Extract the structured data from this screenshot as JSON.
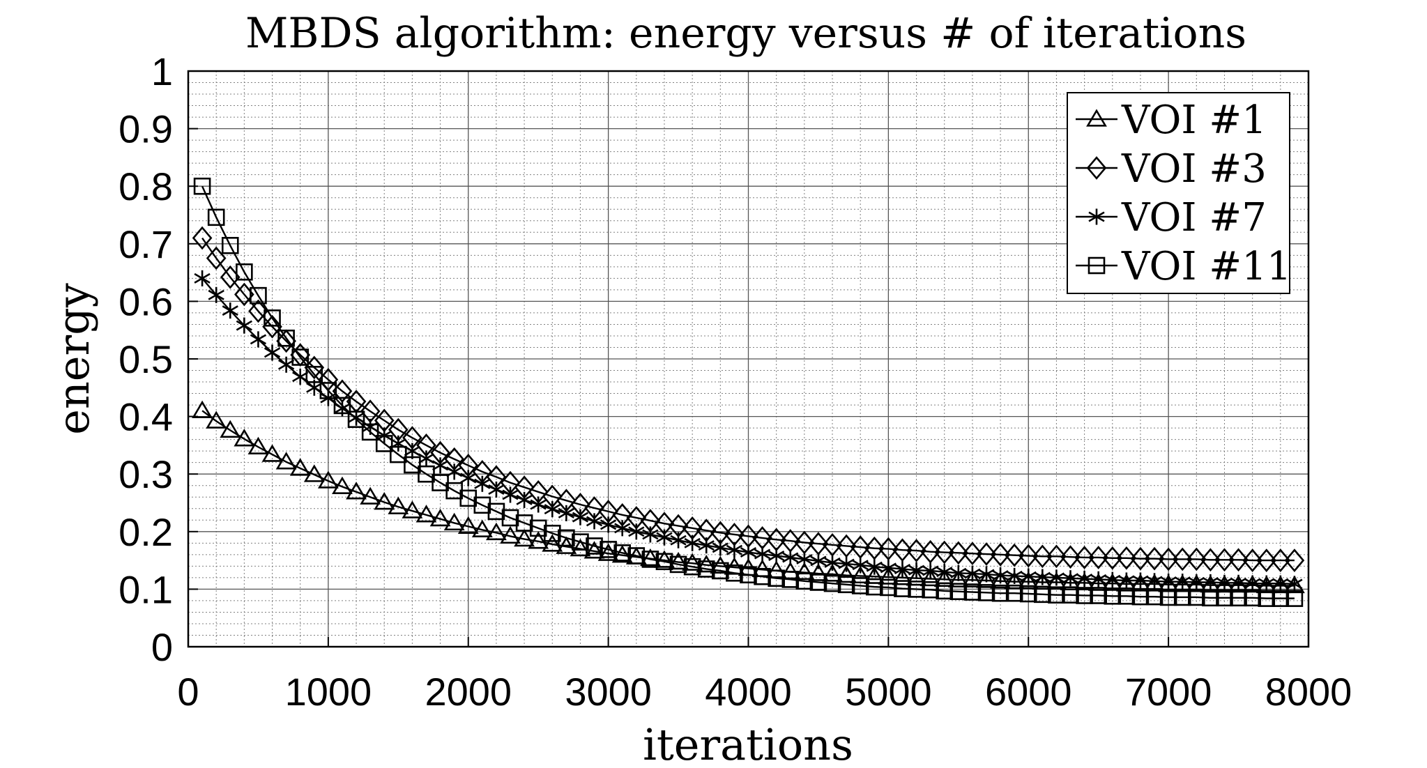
{
  "chart_data": {
    "type": "line",
    "title": "MBDS algorithm: energy versus # of iterations",
    "xlabel": "iterations",
    "ylabel": "energy",
    "xlim": [
      0,
      8000
    ],
    "ylim": [
      0,
      1
    ],
    "xticks": [
      "0",
      "1000",
      "2000",
      "3000",
      "4000",
      "5000",
      "6000",
      "7000",
      "8000"
    ],
    "yticks": [
      "0",
      "0.1",
      "0.2",
      "0.3",
      "0.4",
      "0.5",
      "0.6",
      "0.7",
      "0.8",
      "0.9",
      "1"
    ],
    "grid": true,
    "minor_grid": true,
    "legend_position": "top-right",
    "color": "#000000",
    "x": [
      100,
      200,
      300,
      400,
      500,
      600,
      700,
      800,
      900,
      1000,
      1100,
      1200,
      1300,
      1400,
      1500,
      1600,
      1700,
      1800,
      1900,
      2000,
      2100,
      2200,
      2300,
      2400,
      2500,
      2600,
      2700,
      2800,
      2900,
      3000,
      3100,
      3200,
      3300,
      3400,
      3500,
      3600,
      3700,
      3800,
      3900,
      4000,
      4100,
      4200,
      4300,
      4400,
      4500,
      4600,
      4700,
      4800,
      4900,
      5000,
      5100,
      5200,
      5300,
      5400,
      5500,
      5600,
      5700,
      5800,
      5900,
      6000,
      6100,
      6200,
      6300,
      6400,
      6500,
      6600,
      6700,
      6800,
      6900,
      7000,
      7100,
      7200,
      7300,
      7400,
      7500,
      7600,
      7700,
      7800,
      7900
    ],
    "series": [
      {
        "name": "VOI #1",
        "marker": "triangle",
        "values": [
          0.41,
          0.392,
          0.376,
          0.361,
          0.347,
          0.334,
          0.321,
          0.31,
          0.299,
          0.288,
          0.278,
          0.269,
          0.26,
          0.251,
          0.243,
          0.236,
          0.229,
          0.222,
          0.215,
          0.209,
          0.203,
          0.198,
          0.192,
          0.187,
          0.183,
          0.178,
          0.174,
          0.17,
          0.166,
          0.162,
          0.159,
          0.156,
          0.153,
          0.15,
          0.147,
          0.145,
          0.142,
          0.14,
          0.138,
          0.136,
          0.134,
          0.132,
          0.13,
          0.129,
          0.127,
          0.126,
          0.124,
          0.123,
          0.122,
          0.121,
          0.12,
          0.119,
          0.118,
          0.117,
          0.116,
          0.116,
          0.115,
          0.114,
          0.113,
          0.113,
          0.112,
          0.112,
          0.111,
          0.111,
          0.11,
          0.11,
          0.109,
          0.109,
          0.109,
          0.108,
          0.108,
          0.108,
          0.107,
          0.107,
          0.107,
          0.107,
          0.106,
          0.106,
          0.106
        ]
      },
      {
        "name": "VOI #3",
        "marker": "diamond",
        "values": [
          0.71,
          0.675,
          0.642,
          0.612,
          0.583,
          0.556,
          0.531,
          0.507,
          0.485,
          0.464,
          0.444,
          0.426,
          0.409,
          0.393,
          0.377,
          0.363,
          0.35,
          0.337,
          0.326,
          0.315,
          0.304,
          0.295,
          0.285,
          0.277,
          0.269,
          0.261,
          0.254,
          0.247,
          0.241,
          0.235,
          0.229,
          0.224,
          0.219,
          0.214,
          0.21,
          0.206,
          0.202,
          0.198,
          0.195,
          0.192,
          0.189,
          0.186,
          0.184,
          0.181,
          0.179,
          0.177,
          0.175,
          0.173,
          0.171,
          0.17,
          0.168,
          0.167,
          0.165,
          0.164,
          0.163,
          0.162,
          0.161,
          0.16,
          0.159,
          0.158,
          0.157,
          0.157,
          0.156,
          0.155,
          0.155,
          0.154,
          0.154,
          0.153,
          0.153,
          0.152,
          0.152,
          0.152,
          0.151,
          0.151,
          0.151,
          0.15,
          0.15,
          0.15,
          0.15
        ]
      },
      {
        "name": "VOI #7",
        "marker": "asterisk",
        "values": [
          0.64,
          0.611,
          0.584,
          0.558,
          0.534,
          0.511,
          0.49,
          0.469,
          0.45,
          0.432,
          0.414,
          0.398,
          0.382,
          0.367,
          0.353,
          0.34,
          0.327,
          0.315,
          0.304,
          0.293,
          0.283,
          0.273,
          0.264,
          0.255,
          0.247,
          0.239,
          0.232,
          0.225,
          0.218,
          0.212,
          0.206,
          0.2,
          0.195,
          0.19,
          0.185,
          0.18,
          0.176,
          0.172,
          0.168,
          0.164,
          0.161,
          0.158,
          0.155,
          0.152,
          0.149,
          0.146,
          0.144,
          0.142,
          0.139,
          0.137,
          0.135,
          0.133,
          0.132,
          0.13,
          0.128,
          0.127,
          0.126,
          0.124,
          0.123,
          0.122,
          0.121,
          0.12,
          0.119,
          0.118,
          0.117,
          0.116,
          0.115,
          0.115,
          0.114,
          0.113,
          0.113,
          0.112,
          0.112,
          0.111,
          0.111,
          0.11,
          0.11,
          0.11,
          0.109
        ]
      },
      {
        "name": "VOI #11",
        "marker": "square",
        "values": [
          0.8,
          0.746,
          0.697,
          0.651,
          0.61,
          0.571,
          0.536,
          0.503,
          0.473,
          0.445,
          0.419,
          0.395,
          0.373,
          0.353,
          0.334,
          0.316,
          0.3,
          0.285,
          0.271,
          0.258,
          0.246,
          0.235,
          0.224,
          0.215,
          0.206,
          0.197,
          0.189,
          0.182,
          0.175,
          0.169,
          0.163,
          0.158,
          0.152,
          0.148,
          0.143,
          0.139,
          0.135,
          0.132,
          0.128,
          0.125,
          0.122,
          0.119,
          0.117,
          0.114,
          0.112,
          0.11,
          0.108,
          0.106,
          0.104,
          0.103,
          0.101,
          0.1,
          0.099,
          0.097,
          0.096,
          0.095,
          0.094,
          0.093,
          0.093,
          0.092,
          0.091,
          0.09,
          0.09,
          0.089,
          0.089,
          0.088,
          0.088,
          0.087,
          0.087,
          0.086,
          0.086,
          0.086,
          0.085,
          0.085,
          0.085,
          0.085,
          0.084,
          0.084,
          0.084
        ]
      }
    ]
  }
}
